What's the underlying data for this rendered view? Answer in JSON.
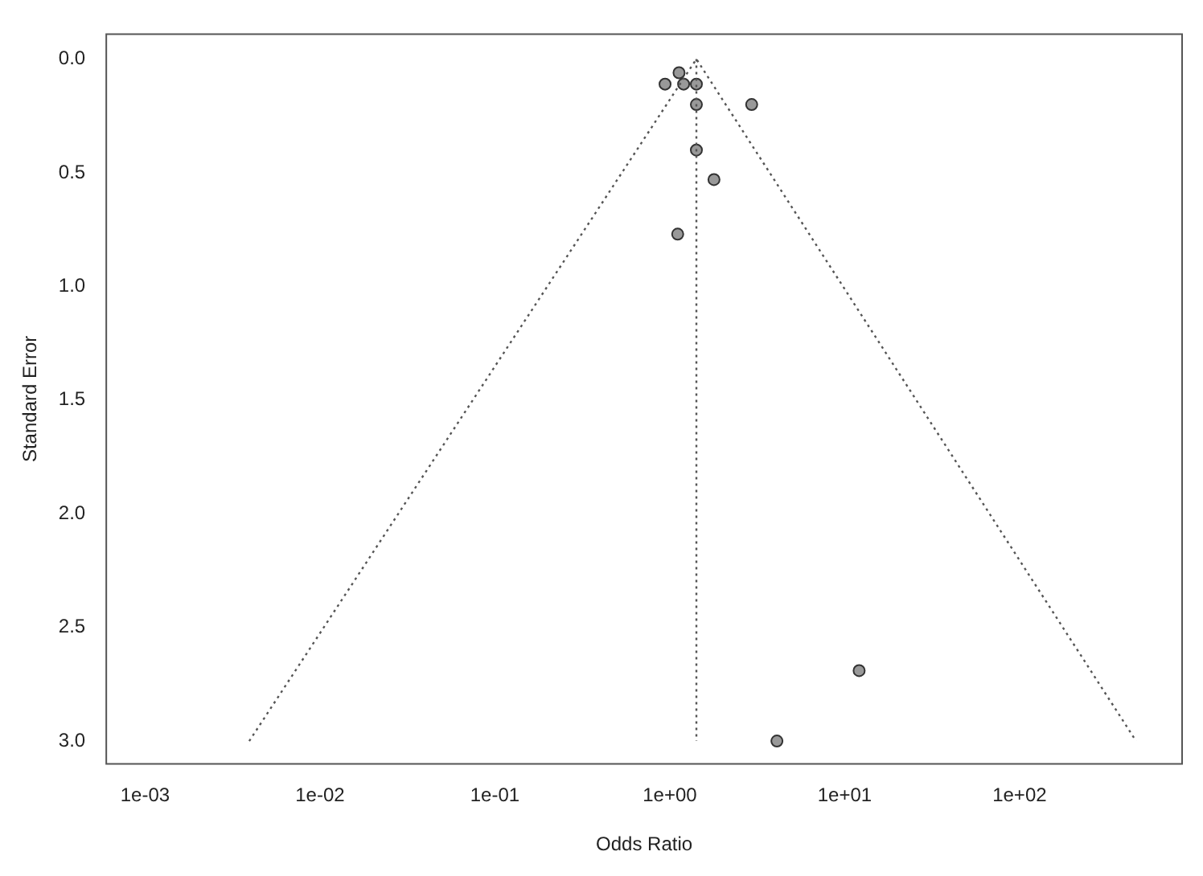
{
  "chart_data": {
    "type": "scatter",
    "xlabel": "Odds Ratio",
    "ylabel": "Standard Error",
    "log": "x",
    "grid": false,
    "legend": false,
    "marker": "circle",
    "xlim": [
      0.0006,
      850
    ],
    "ylim": [
      3.1,
      -0.11
    ],
    "xticks": [
      {
        "value": 0.001,
        "label": "1e-03"
      },
      {
        "value": 0.01,
        "label": "1e-02"
      },
      {
        "value": 0.1,
        "label": "1e-01"
      },
      {
        "value": 1,
        "label": "1e+00"
      },
      {
        "value": 10,
        "label": "1e+01"
      },
      {
        "value": 100,
        "label": "1e+02"
      }
    ],
    "yticks": [
      {
        "value": 0,
        "label": "0.0"
      },
      {
        "value": 0.5,
        "label": "0.5"
      },
      {
        "value": 1,
        "label": "1.0"
      },
      {
        "value": 1.5,
        "label": "1.5"
      },
      {
        "value": 2,
        "label": "2.0"
      },
      {
        "value": 2.5,
        "label": "2.5"
      },
      {
        "value": 3,
        "label": "3.0"
      }
    ],
    "series": [
      {
        "type": "line",
        "color": "#555555",
        "line_style": "dotted",
        "marker": "none",
        "x": [
          0.00394,
          1.42,
          464
        ],
        "values": [
          3,
          0,
          3
        ]
      },
      {
        "type": "line",
        "color": "#555555",
        "line_style": "dotted",
        "marker": "none",
        "x": [
          1.42,
          1.42
        ],
        "values": [
          0,
          3
        ]
      },
      {
        "type": "scatter",
        "color": "#999999",
        "x": [
          1.13,
          0.94,
          1.2,
          1.42,
          1.42,
          2.94,
          1.42,
          1.79,
          1.11,
          12.1,
          4.1
        ],
        "values": [
          0.06,
          0.11,
          0.11,
          0.11,
          0.2,
          0.2,
          0.4,
          0.53,
          0.77,
          2.69,
          3.0
        ]
      }
    ]
  }
}
